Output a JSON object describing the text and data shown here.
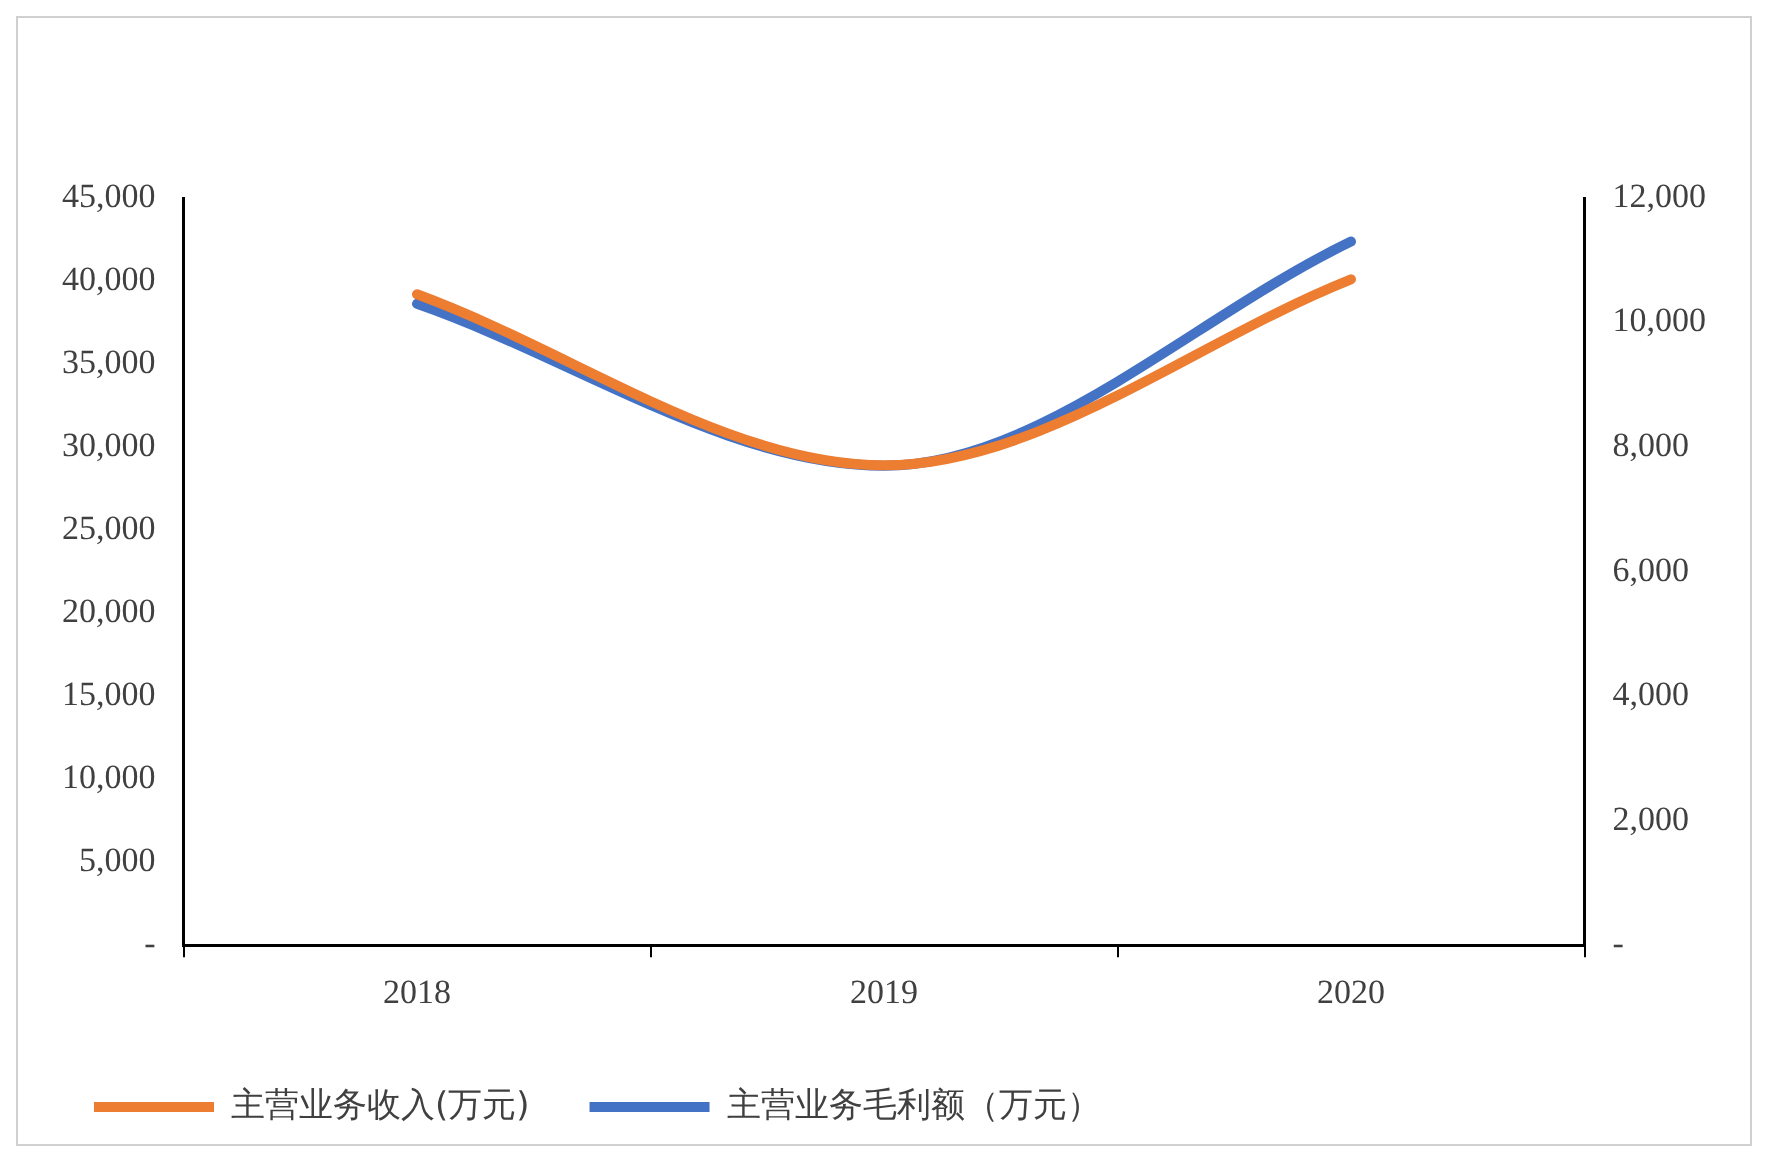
{
  "chart_data": {
    "type": "line",
    "categories": [
      "2018",
      "2019",
      "2020"
    ],
    "series": [
      {
        "name": "主营业务收入(万元)",
        "color": "#ed7d31",
        "values": [
          39200,
          28900,
          40100
        ]
      },
      {
        "name": "主营业务毛利额（万元）",
        "color": "#4472c4",
        "values": [
          10300,
          7700,
          11300
        ],
        "axis": "y2"
      }
    ],
    "ylim": [
      0,
      45000
    ],
    "yticks": [
      {
        "value": 0,
        "label": "-"
      },
      {
        "value": 5000,
        "label": "5,000"
      },
      {
        "value": 10000,
        "label": "10,000"
      },
      {
        "value": 15000,
        "label": "15,000"
      },
      {
        "value": 20000,
        "label": "20,000"
      },
      {
        "value": 25000,
        "label": "25,000"
      },
      {
        "value": 30000,
        "label": "30,000"
      },
      {
        "value": 35000,
        "label": "35,000"
      },
      {
        "value": 40000,
        "label": "40,000"
      },
      {
        "value": 45000,
        "label": "45,000"
      }
    ],
    "y2lim": [
      0,
      12000
    ],
    "y2ticks": [
      {
        "value": 0,
        "label": "-"
      },
      {
        "value": 2000,
        "label": "2,000"
      },
      {
        "value": 4000,
        "label": "4,000"
      },
      {
        "value": 6000,
        "label": "6,000"
      },
      {
        "value": 8000,
        "label": "8,000"
      },
      {
        "value": 10000,
        "label": "10,000"
      },
      {
        "value": 12000,
        "label": "12,000"
      }
    ],
    "legend": "bottom",
    "grid": false,
    "marker": "none",
    "line_style": "solid"
  }
}
